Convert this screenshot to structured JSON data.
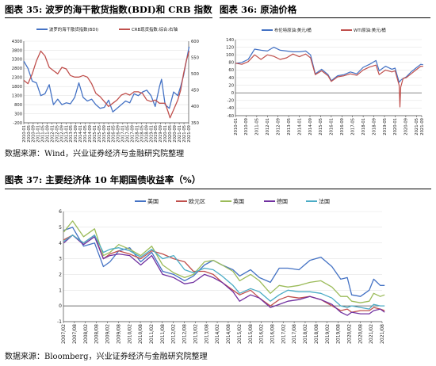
{
  "captions": {
    "fig35": "图表 35:  波罗的海干散货指数(BDI)和 CRB 指数",
    "fig36": "图表 36:  原油价格",
    "fig37": "图表 37:  主要经济体 10 年期国债收益率（%）"
  },
  "sources": {
    "top": "数据来源：Wind，兴业证券经济与金融研究院整理",
    "bottom": "数据来源：Bloomberg，兴业证券经济与金融研究院整理"
  },
  "colors": {
    "blue": "#4472C4",
    "red": "#C0504D",
    "green": "#9BBB59",
    "purple": "#7030A0",
    "cyan": "#4BACC6"
  },
  "chart_data": [
    {
      "type": "line",
      "x_ticks": [
        "2010-01",
        "2010-05",
        "2010-09",
        "2011-01",
        "2011-05",
        "2011-09",
        "2012-01",
        "2012-05",
        "2012-09",
        "2013-01",
        "2013-05",
        "2013-09",
        "2014-01",
        "2014-05",
        "2014-09",
        "2015-01",
        "2015-05",
        "2015-09",
        "2016-01",
        "2016-05",
        "2016-09",
        "2017-01",
        "2017-05",
        "2017-09",
        "2018-01",
        "2018-05",
        "2018-09",
        "2019-01",
        "2019-05",
        "2019-09",
        "2020-01",
        "2020-05",
        "2020-09",
        "2021-01",
        "2021-05",
        "2021-09"
      ],
      "y_left": {
        "min": -200,
        "max": 4300,
        "ticks": [
          -200,
          300,
          800,
          1300,
          1800,
          2300,
          2800,
          3300,
          3800,
          4300
        ]
      },
      "y_right": {
        "min": 350,
        "max": 600,
        "ticks": [
          350,
          400,
          450,
          500,
          550,
          600
        ]
      },
      "series": [
        {
          "name": "波罗的海干散货指数(BDI)",
          "axis": "left",
          "color_key": "blue",
          "x": [
            2010.0,
            2010.3,
            2010.6,
            2010.9,
            2011.2,
            2011.5,
            2011.8,
            2012.1,
            2012.4,
            2012.7,
            2013.0,
            2013.3,
            2013.6,
            2013.9,
            2014.2,
            2014.5,
            2014.8,
            2015.1,
            2015.4,
            2015.7,
            2016.0,
            2016.3,
            2016.6,
            2016.9,
            2017.2,
            2017.5,
            2017.8,
            2018.1,
            2018.4,
            2018.7,
            2019.0,
            2019.3,
            2019.6,
            2019.75,
            2020.0,
            2020.3,
            2020.6,
            2020.9,
            2021.1,
            2021.3,
            2021.5,
            2021.7
          ],
          "y": [
            3200,
            2800,
            2100,
            2000,
            1300,
            1400,
            1900,
            800,
            1100,
            800,
            900,
            850,
            1200,
            2000,
            1200,
            1000,
            1100,
            800,
            600,
            650,
            1050,
            400,
            600,
            800,
            1000,
            900,
            1400,
            1300,
            1500,
            1600,
            1300,
            700,
            1800,
            2200,
            800,
            600,
            1500,
            1300,
            1800,
            2400,
            3200,
            4000
          ]
        },
        {
          "name": "CRB现货指数:综合:右轴",
          "axis": "right",
          "color_key": "red",
          "x": [
            2010.0,
            2010.3,
            2010.6,
            2010.9,
            2011.2,
            2011.5,
            2011.8,
            2012.1,
            2012.4,
            2012.7,
            2013.0,
            2013.3,
            2013.6,
            2013.9,
            2014.2,
            2014.5,
            2014.8,
            2015.1,
            2015.4,
            2015.7,
            2016.0,
            2016.3,
            2016.6,
            2016.9,
            2017.2,
            2017.5,
            2017.8,
            2018.1,
            2018.4,
            2018.7,
            2019.0,
            2019.3,
            2019.6,
            2020.0,
            2020.2,
            2020.35,
            2020.6,
            2020.9,
            2021.1,
            2021.3,
            2021.5,
            2021.7
          ],
          "y": [
            480,
            470,
            500,
            540,
            570,
            555,
            520,
            510,
            500,
            520,
            515,
            495,
            490,
            490,
            495,
            490,
            470,
            440,
            430,
            415,
            400,
            410,
            420,
            435,
            440,
            435,
            445,
            445,
            440,
            420,
            415,
            420,
            410,
            410,
            385,
            365,
            390,
            420,
            450,
            500,
            540,
            570
          ]
        }
      ]
    },
    {
      "type": "line",
      "x_ticks": [
        "2010-01",
        "2010-09",
        "2011-05",
        "2012-01",
        "2012-09",
        "2013-05",
        "2014-01",
        "2014-09",
        "2015-05",
        "2016-01",
        "2016-09",
        "2017-05",
        "2018-01",
        "2018-09",
        "2019-05",
        "2020-01",
        "2020-09",
        "2021-05",
        "2021-09"
      ],
      "y_left": {
        "min": -60,
        "max": 140,
        "ticks": [
          -60,
          -40,
          -20,
          0,
          20,
          40,
          60,
          80,
          100,
          120,
          140
        ]
      },
      "series": [
        {
          "name": "布伦特原油:美元/桶",
          "color_key": "blue",
          "x": [
            2010.0,
            2010.4,
            2010.8,
            2011.2,
            2011.6,
            2012.0,
            2012.4,
            2012.8,
            2013.2,
            2013.6,
            2014.0,
            2014.4,
            2014.7,
            2015.0,
            2015.4,
            2015.8,
            2016.0,
            2016.4,
            2016.8,
            2017.2,
            2017.6,
            2018.0,
            2018.4,
            2018.8,
            2019.0,
            2019.4,
            2019.8,
            2020.0,
            2020.25,
            2020.4,
            2020.7,
            2021.0,
            2021.3,
            2021.6,
            2021.75
          ],
          "y": [
            77,
            80,
            88,
            115,
            112,
            110,
            120,
            112,
            110,
            108,
            108,
            110,
            100,
            50,
            62,
            48,
            32,
            45,
            48,
            55,
            50,
            67,
            75,
            85,
            58,
            70,
            62,
            65,
            28,
            35,
            42,
            55,
            65,
            75,
            74
          ]
        },
        {
          "name": "WTI原油:美元/桶",
          "color_key": "red",
          "x": [
            2010.0,
            2010.4,
            2010.8,
            2011.2,
            2011.6,
            2012.0,
            2012.4,
            2012.8,
            2013.2,
            2013.6,
            2014.0,
            2014.4,
            2014.7,
            2015.0,
            2015.4,
            2015.8,
            2016.0,
            2016.4,
            2016.8,
            2017.2,
            2017.6,
            2018.0,
            2018.4,
            2018.8,
            2019.0,
            2019.4,
            2019.8,
            2020.0,
            2020.25,
            2020.3,
            2020.35,
            2020.5,
            2020.7,
            2021.0,
            2021.3,
            2021.6,
            2021.75
          ],
          "y": [
            78,
            75,
            82,
            100,
            88,
            100,
            96,
            88,
            92,
            102,
            95,
            102,
            92,
            48,
            58,
            45,
            30,
            42,
            45,
            50,
            46,
            60,
            68,
            73,
            48,
            60,
            55,
            58,
            20,
            -37,
            15,
            38,
            40,
            50,
            60,
            70,
            70
          ]
        }
      ]
    },
    {
      "type": "line",
      "x_ticks": [
        "2007/02",
        "2007/08",
        "2008/02",
        "2008/08",
        "2009/02",
        "2009/08",
        "2010/02",
        "2010/08",
        "2011/02",
        "2011/08",
        "2012/02",
        "2012/08",
        "2013/02",
        "2013/08",
        "2014/02",
        "2014/08",
        "2015/02",
        "2015/08",
        "2016/02",
        "2016/08",
        "2017/02",
        "2017/08",
        "2018/02",
        "2018/08",
        "2019/02",
        "2019/08",
        "2020/02",
        "2020/08",
        "2021/02",
        "2021/08"
      ],
      "y_left": {
        "min": -1,
        "max": 6,
        "ticks": [
          -1,
          0,
          1,
          2,
          3,
          4,
          5,
          6
        ]
      },
      "series": [
        {
          "name": "美国",
          "color_key": "blue",
          "x": [
            2007.1,
            2007.5,
            2008.0,
            2008.5,
            2008.9,
            2009.2,
            2009.6,
            2010.1,
            2010.6,
            2011.1,
            2011.6,
            2012.1,
            2012.6,
            2013.0,
            2013.5,
            2013.9,
            2014.3,
            2014.8,
            2015.1,
            2015.6,
            2016.0,
            2016.5,
            2016.9,
            2017.3,
            2017.8,
            2018.3,
            2018.8,
            2019.3,
            2019.7,
            2020.0,
            2020.2,
            2020.6,
            2021.0,
            2021.2,
            2021.5,
            2021.7
          ],
          "y": [
            4.8,
            5.0,
            3.8,
            4.0,
            2.5,
            2.8,
            3.5,
            3.7,
            2.8,
            3.4,
            2.2,
            2.0,
            1.6,
            1.9,
            2.6,
            2.9,
            2.6,
            2.3,
            1.9,
            2.3,
            1.8,
            1.5,
            2.4,
            2.4,
            2.3,
            2.9,
            3.1,
            2.5,
            1.7,
            1.8,
            0.7,
            0.6,
            1.0,
            1.7,
            1.3,
            1.3
          ]
        },
        {
          "name": "欧元区",
          "color_key": "red",
          "x": [
            2007.1,
            2007.5,
            2008.0,
            2008.5,
            2008.9,
            2009.2,
            2009.6,
            2010.1,
            2010.6,
            2011.1,
            2011.6,
            2012.1,
            2012.6,
            2013.0,
            2013.5,
            2013.9,
            2014.3,
            2014.8,
            2015.1,
            2015.6,
            2016.0,
            2016.5,
            2016.9,
            2017.3,
            2017.8,
            2018.3,
            2018.8,
            2019.3,
            2019.7,
            2020.0,
            2020.2,
            2020.6,
            2021.0,
            2021.2,
            2021.5,
            2021.7
          ],
          "y": [
            4.2,
            4.5,
            4.0,
            4.5,
            3.0,
            3.3,
            3.5,
            3.3,
            3.0,
            3.5,
            3.3,
            3.0,
            2.8,
            2.2,
            2.2,
            2.0,
            1.5,
            1.0,
            0.7,
            1.0,
            0.5,
            0.0,
            0.4,
            0.6,
            0.5,
            0.6,
            0.4,
            0.0,
            -0.3,
            -0.2,
            -0.4,
            -0.3,
            -0.3,
            -0.1,
            -0.2,
            -0.3
          ]
        },
        {
          "name": "英国",
          "color_key": "green",
          "x": [
            2007.1,
            2007.5,
            2008.0,
            2008.5,
            2008.9,
            2009.2,
            2009.6,
            2010.1,
            2010.6,
            2011.1,
            2011.6,
            2012.1,
            2012.6,
            2013.0,
            2013.5,
            2013.9,
            2014.3,
            2014.8,
            2015.1,
            2015.6,
            2016.0,
            2016.5,
            2016.9,
            2017.3,
            2017.8,
            2018.3,
            2018.8,
            2019.3,
            2019.7,
            2020.0,
            2020.2,
            2020.6,
            2021.0,
            2021.2,
            2021.5,
            2021.7
          ],
          "y": [
            4.7,
            5.4,
            4.4,
            4.9,
            3.2,
            3.4,
            3.9,
            3.6,
            3.2,
            3.8,
            2.6,
            2.1,
            1.8,
            2.0,
            2.8,
            2.9,
            2.6,
            2.2,
            1.6,
            2.0,
            1.6,
            0.8,
            1.3,
            1.2,
            1.3,
            1.5,
            1.6,
            1.2,
            0.6,
            0.6,
            0.3,
            0.2,
            0.3,
            0.8,
            0.6,
            0.7
          ]
        },
        {
          "name": "德国",
          "color_key": "purple",
          "x": [
            2007.1,
            2007.5,
            2008.0,
            2008.5,
            2008.9,
            2009.2,
            2009.6,
            2010.1,
            2010.6,
            2011.1,
            2011.6,
            2012.1,
            2012.6,
            2013.0,
            2013.5,
            2013.9,
            2014.3,
            2014.8,
            2015.1,
            2015.6,
            2016.0,
            2016.5,
            2016.9,
            2017.3,
            2017.8,
            2018.3,
            2018.8,
            2019.3,
            2019.7,
            2020.0,
            2020.2,
            2020.6,
            2021.0,
            2021.2,
            2021.5,
            2021.7
          ],
          "y": [
            4.0,
            4.5,
            3.9,
            4.4,
            3.0,
            3.2,
            3.3,
            3.2,
            2.6,
            3.2,
            2.0,
            1.8,
            1.4,
            1.5,
            2.0,
            1.8,
            1.5,
            0.9,
            0.3,
            0.7,
            0.5,
            -0.1,
            0.1,
            0.3,
            0.4,
            0.6,
            0.4,
            0.1,
            -0.4,
            -0.6,
            -0.4,
            -0.5,
            -0.5,
            -0.3,
            -0.2,
            -0.4
          ]
        },
        {
          "name": "法国",
          "color_key": "cyan",
          "x": [
            2007.1,
            2007.5,
            2008.0,
            2008.5,
            2008.9,
            2009.2,
            2009.6,
            2010.1,
            2010.6,
            2011.1,
            2011.6,
            2012.1,
            2012.6,
            2013.0,
            2013.5,
            2013.9,
            2014.3,
            2014.8,
            2015.1,
            2015.6,
            2016.0,
            2016.5,
            2016.9,
            2017.3,
            2017.8,
            2018.3,
            2018.8,
            2019.3,
            2019.7,
            2020.0,
            2020.2,
            2020.6,
            2021.0,
            2021.2,
            2021.5,
            2021.7
          ],
          "y": [
            4.1,
            4.5,
            4.0,
            4.5,
            3.4,
            3.6,
            3.7,
            3.5,
            3.1,
            3.6,
            3.0,
            3.2,
            2.3,
            2.1,
            2.4,
            2.3,
            1.9,
            1.3,
            0.8,
            1.1,
            0.9,
            0.3,
            0.7,
            1.0,
            0.9,
            0.9,
            0.8,
            0.5,
            0.0,
            -0.1,
            0.0,
            -0.1,
            -0.2,
            0.1,
            0.0,
            0.0
          ]
        }
      ]
    }
  ]
}
